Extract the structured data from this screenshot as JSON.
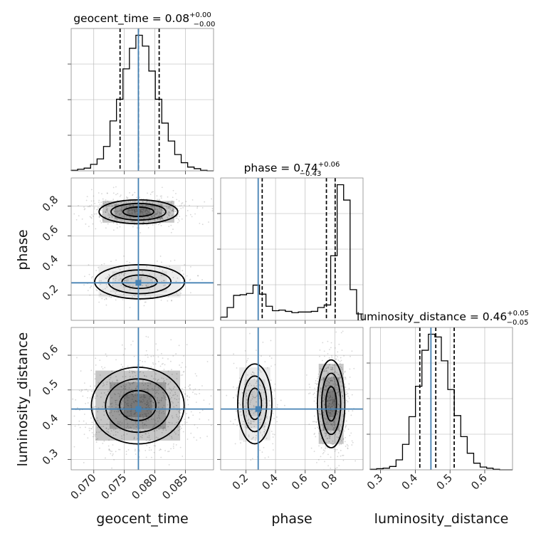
{
  "chart_data": {
    "type": "corner",
    "parameters": [
      "geocent_time",
      "phase",
      "luminosity_distance"
    ],
    "axis_labels": {
      "x": [
        "geocent_time",
        "phase",
        "luminosity_distance"
      ],
      "y": [
        "",
        "phase",
        "luminosity_distance"
      ]
    },
    "ranges": {
      "geocent_time": [
        0.0663,
        0.0896
      ],
      "phase": [
        0.03,
        0.99
      ],
      "luminosity_distance": [
        0.27,
        0.68
      ]
    },
    "ticks": {
      "geocent_time": [
        "0.070",
        "0.075",
        "0.080",
        "0.085"
      ],
      "phase": [
        "0.2",
        "0.4",
        "0.6",
        "0.8"
      ],
      "luminosity_distance": [
        "0.3",
        "0.4",
        "0.5",
        "0.6"
      ]
    },
    "titles": [
      {
        "param": "geocent_time",
        "prefix": "geocent_time = ",
        "median": "0.08",
        "upper": "+0.00",
        "lower": "−0.00"
      },
      {
        "param": "phase",
        "prefix": "phase = ",
        "median": "0.74",
        "upper": "+0.06",
        "lower": "−0.43"
      },
      {
        "param": "luminosity_distance",
        "prefix": "luminosity_distance = ",
        "median": "0.46",
        "upper": "+0.05",
        "lower": "−0.05"
      }
    ],
    "truths": {
      "geocent_time": 0.0773,
      "phase": 0.283,
      "luminosity_distance": 0.445
    },
    "quantiles": {
      "geocent_time": [
        0.0743,
        0.0773,
        0.0807
      ],
      "phase": [
        0.31,
        0.743,
        0.802
      ],
      "luminosity_distance": [
        0.413,
        0.459,
        0.512
      ]
    },
    "histograms": {
      "geocent_time": {
        "edges": [
          0.0663,
          0.0896
        ],
        "counts": [
          1,
          3,
          5,
          12,
          22,
          45,
          92,
          132,
          188,
          226,
          250,
          230,
          184,
          132,
          88,
          55,
          30,
          15,
          7,
          4,
          1,
          0
        ]
      },
      "phase": {
        "edges": [
          0.03,
          0.99
        ],
        "counts": [
          5,
          20,
          39,
          40,
          42,
          55,
          41,
          22,
          15,
          16,
          14,
          12,
          13,
          13,
          14,
          20,
          24,
          101,
          212,
          188,
          48,
          10
        ]
      },
      "luminosity_distance": {
        "edges": [
          0.27,
          0.68
        ],
        "counts": [
          1,
          2,
          3,
          6,
          18,
          46,
          96,
          151,
          216,
          245,
          240,
          197,
          145,
          98,
          60,
          30,
          12,
          5,
          3,
          1,
          0,
          0
        ]
      }
    },
    "density_2d": [
      {
        "x": "geocent_time",
        "y": "phase",
        "modes": [
          {
            "x": 0.0773,
            "y": 0.762,
            "sx": 0.0028,
            "sy": 0.035,
            "w": 1.0
          },
          {
            "x": 0.0775,
            "y": 0.29,
            "sx": 0.0032,
            "sy": 0.05,
            "w": 0.3
          }
        ]
      },
      {
        "x": "geocent_time",
        "y": "luminosity_distance",
        "modes": [
          {
            "x": 0.0772,
            "y": 0.455,
            "sx": 0.0033,
            "sy": 0.048,
            "w": 1.0
          }
        ]
      },
      {
        "x": "phase",
        "y": "luminosity_distance",
        "modes": [
          {
            "x": 0.775,
            "y": 0.46,
            "sx": 0.04,
            "sy": 0.055,
            "w": 1.0
          },
          {
            "x": 0.26,
            "y": 0.46,
            "sx": 0.05,
            "sy": 0.05,
            "w": 0.35
          }
        ]
      }
    ]
  }
}
